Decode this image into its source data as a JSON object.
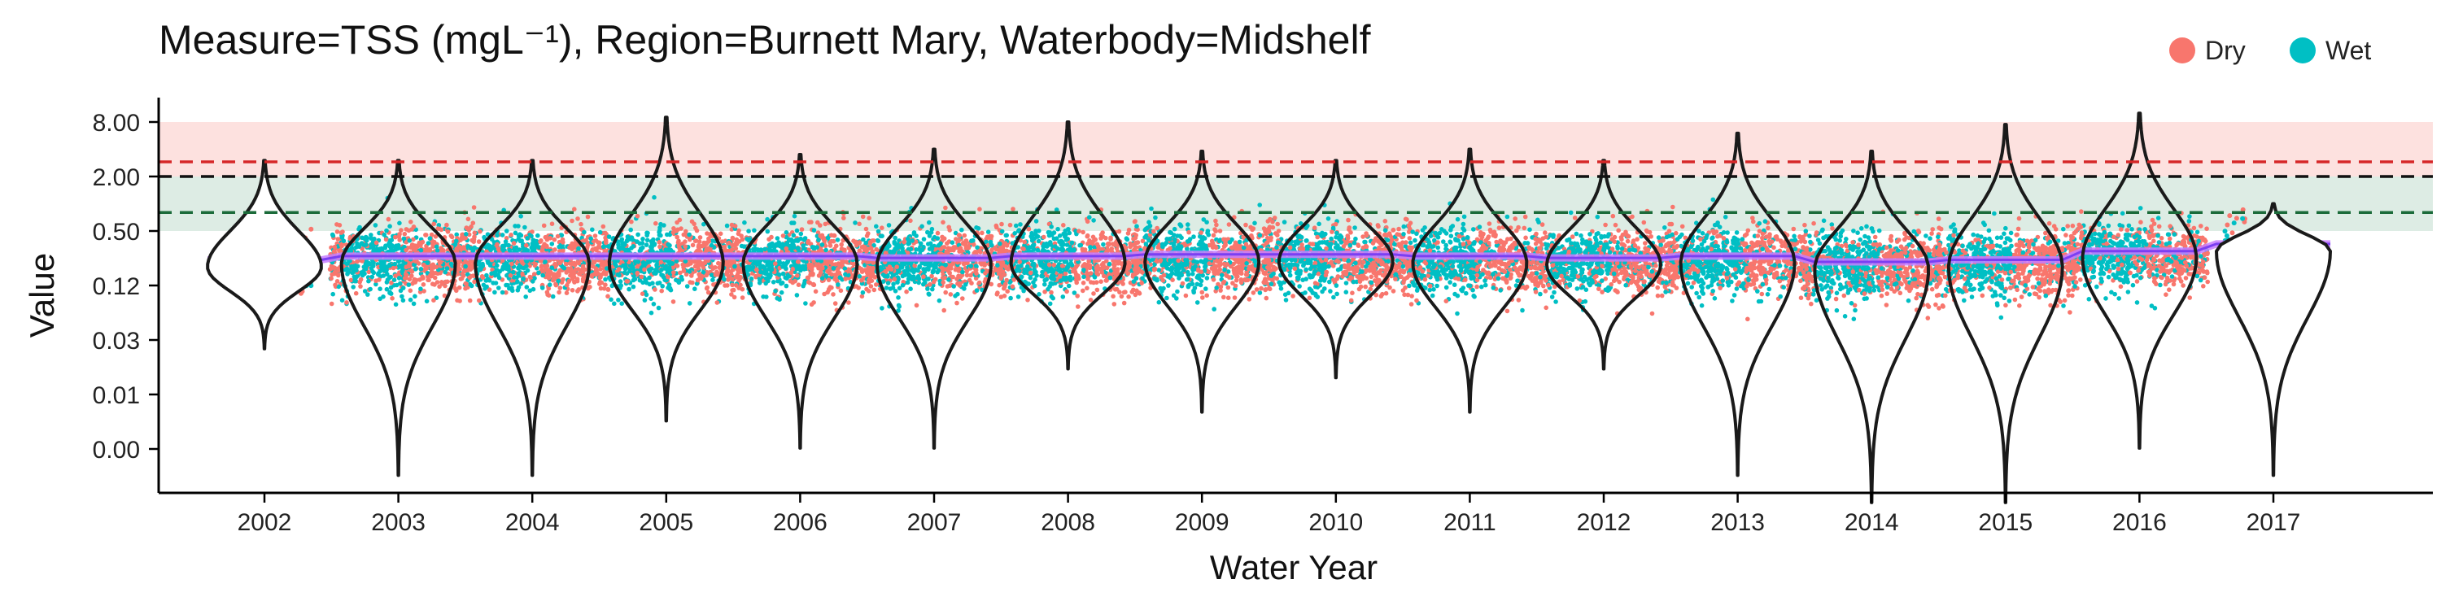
{
  "chart_data": {
    "type": "violin",
    "title": "Measure=TSS (mgL⁻¹), Region=Burnett Mary, Waterbody=Midshelf",
    "xlabel": "Water Year",
    "ylabel": "Value",
    "y_scale": "log",
    "y_ticks": [
      "8.00",
      "2.00",
      "0.50",
      "0.12",
      "0.03",
      "0.01",
      "0.00"
    ],
    "categories": [
      "2002",
      "2003",
      "2004",
      "2005",
      "2006",
      "2007",
      "2008",
      "2009",
      "2010",
      "2011",
      "2012",
      "2013",
      "2014",
      "2015",
      "2016",
      "2017"
    ],
    "series": [
      {
        "name": "Dry",
        "color": "#F8766D"
      },
      {
        "name": "Wet",
        "color": "#00BFC4"
      }
    ],
    "legend_position": "top-right",
    "reference_lines": [
      {
        "value": 2.9,
        "color": "#d62728",
        "style": "dashed"
      },
      {
        "value": 2.0,
        "color": "#111111",
        "style": "dashed"
      },
      {
        "value": 0.8,
        "color": "#1b6b3a",
        "style": "dashed"
      }
    ],
    "bands": [
      {
        "from": 2.0,
        "to": 8.0,
        "color": "#F8766D"
      },
      {
        "from": 0.5,
        "to": 2.0,
        "color": "#2e8b57"
      }
    ],
    "medians": [
      0.2,
      0.22,
      0.22,
      0.22,
      0.22,
      0.21,
      0.22,
      0.23,
      0.23,
      0.22,
      0.21,
      0.22,
      0.19,
      0.2,
      0.25,
      0.3
    ],
    "violin_min": [
      0.025,
      0.001,
      0.001,
      0.004,
      0.002,
      0.002,
      0.015,
      0.005,
      0.012,
      0.005,
      0.015,
      0.001,
      0.0005,
      0.0005,
      0.002,
      0.001
    ],
    "violin_max": [
      3.0,
      3.0,
      3.0,
      9.0,
      3.5,
      4.0,
      8.0,
      3.8,
      3.0,
      4.0,
      3.0,
      6.0,
      3.8,
      7.5,
      10.0,
      1.0
    ]
  }
}
